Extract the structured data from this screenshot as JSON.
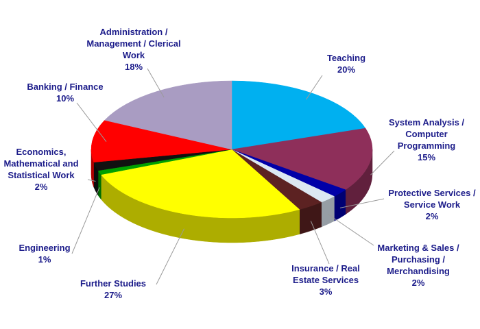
{
  "chart_data": {
    "type": "pie",
    "categories": [
      "Teaching",
      "System Analysis / Computer Programming",
      "Protective Services / Service Work",
      "Marketing & Sales / Purchasing / Merchandising",
      "Insurance / Real Estate Services",
      "Further Studies",
      "Engineering",
      "Economics, Mathematical and Statistical Work",
      "Banking / Finance",
      "Administration / Management / Clerical Work"
    ],
    "values": [
      20,
      15,
      2,
      2,
      3,
      27,
      1,
      2,
      10,
      18
    ],
    "value_labels": [
      "20%",
      "15%",
      "2%",
      "2%",
      "3%",
      "27%",
      "1%",
      "2%",
      "10%",
      "18%"
    ],
    "colors": [
      "#00b0f0",
      "#8e2f5a",
      "#0000a8",
      "#dce8f2",
      "#5c2222",
      "#ffff00",
      "#00a000",
      "#111111",
      "#ff0000",
      "#a99cc2"
    ]
  }
}
